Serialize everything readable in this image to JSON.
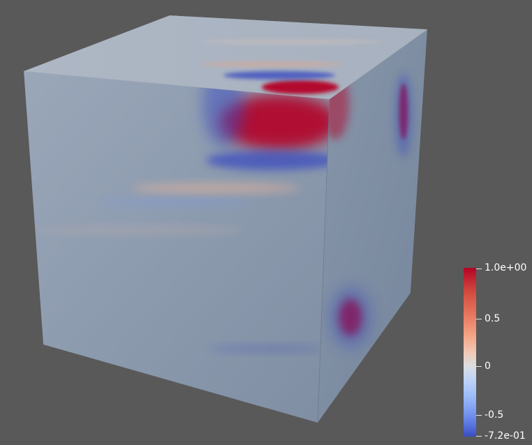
{
  "colorbar": {
    "colormap": "coolwarm",
    "colors": [
      "#b40426",
      "#f2c8b4",
      "#dcdde1",
      "#9cbcf8",
      "#3b4cc0"
    ],
    "ticks": [
      {
        "label": "1.0e+00",
        "value": 1.0
      },
      {
        "label": "0.5",
        "value": 0.5
      },
      {
        "label": "0",
        "value": 0.0
      },
      {
        "label": "-0.5",
        "value": -0.5
      },
      {
        "label": "-7.2e-01",
        "value": -0.72
      }
    ],
    "range": [
      -0.72,
      1.0
    ]
  },
  "background_color": "#595959",
  "scene": {
    "object": "cube",
    "base_color": "#8e9cb0"
  }
}
